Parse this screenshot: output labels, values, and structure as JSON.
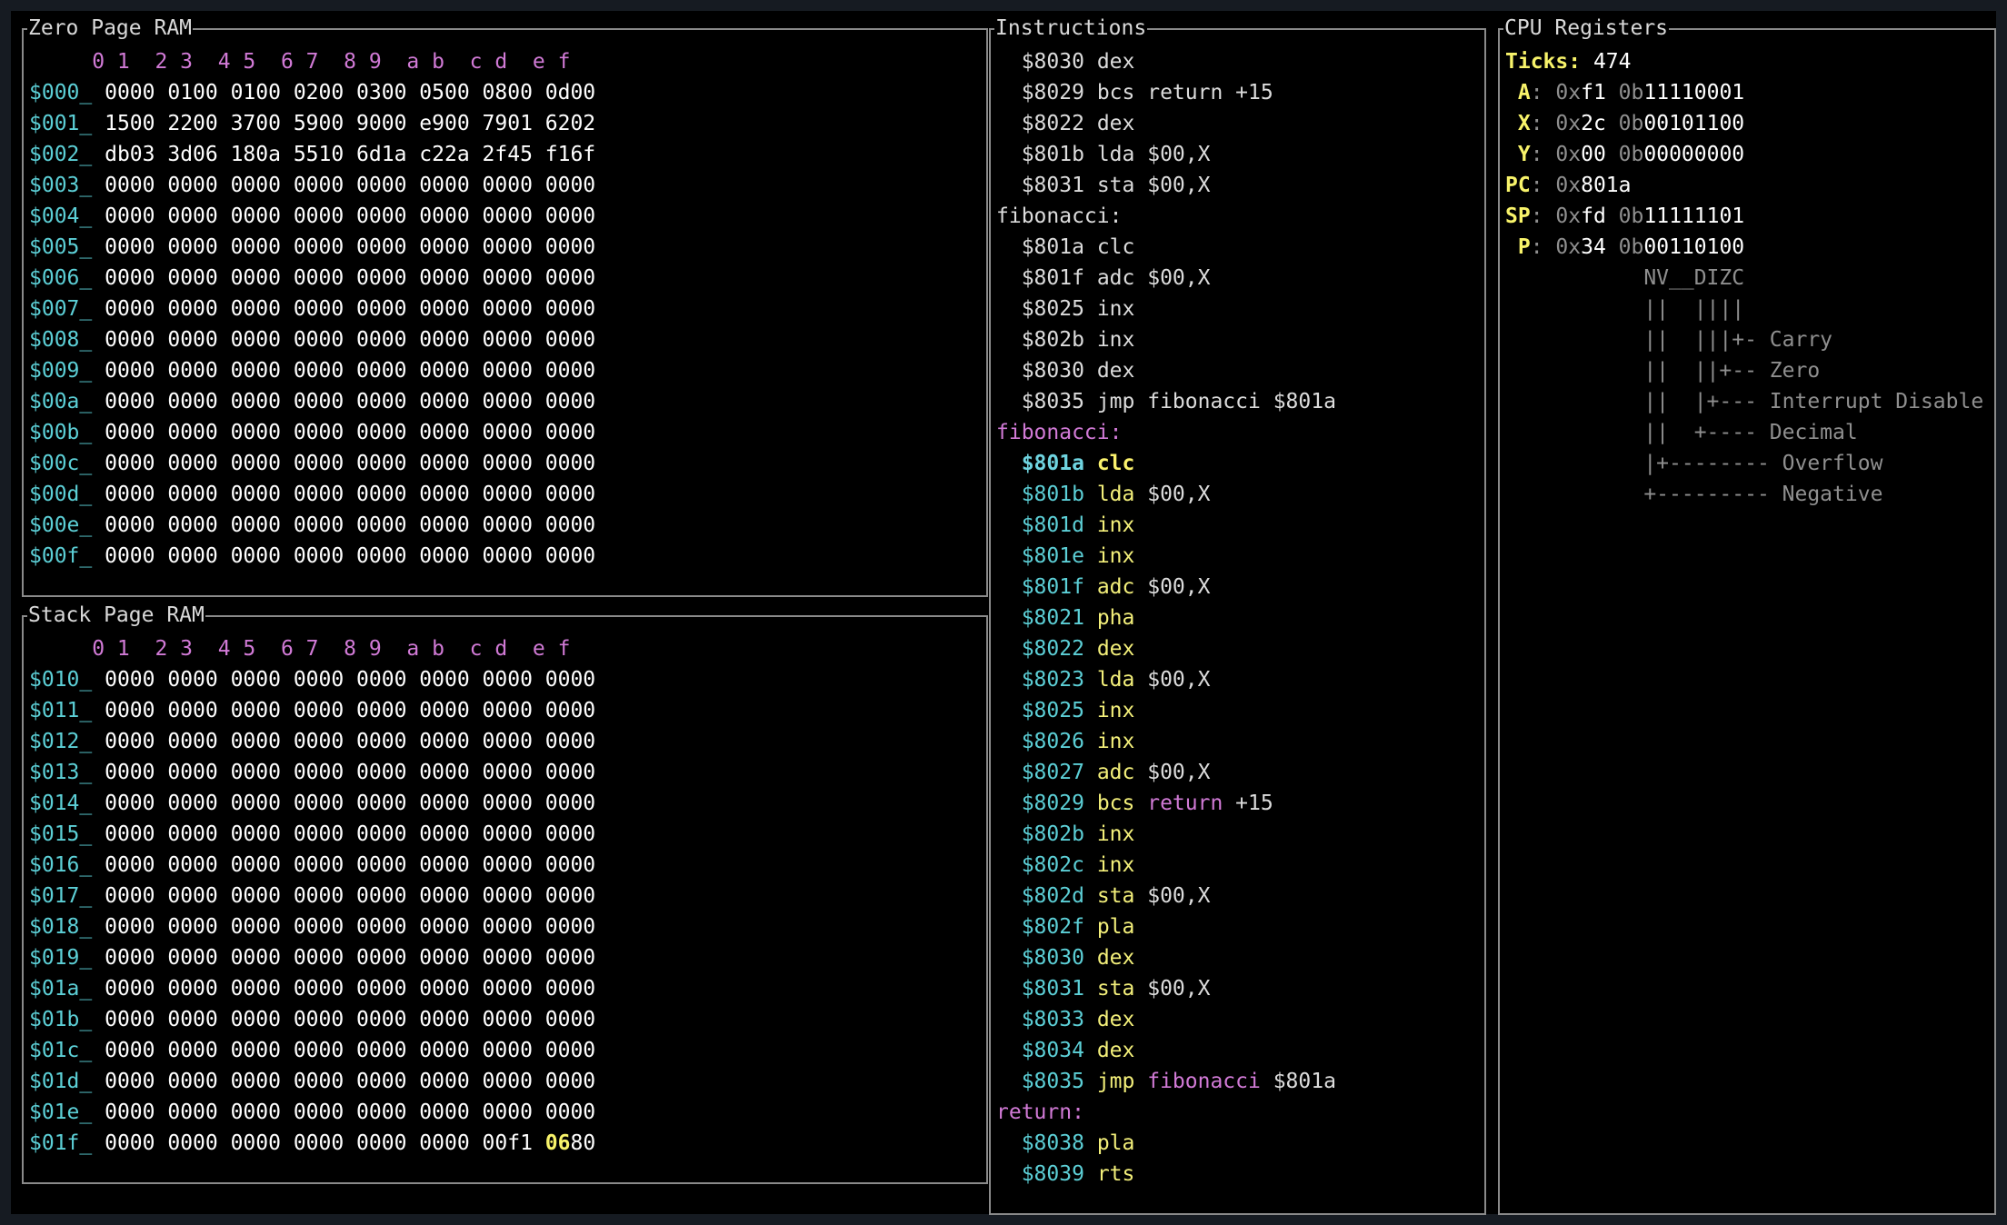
{
  "zero_page": {
    "title": "Zero Page RAM",
    "header": "     0 1  2 3  4 5  6 7  8 9  a b  c d  e f",
    "rows": [
      {
        "addr": "$000_",
        "data": "0000 0100 0100 0200 0300 0500 0800 0d00"
      },
      {
        "addr": "$001_",
        "data": "1500 2200 3700 5900 9000 e900 7901 6202"
      },
      {
        "addr": "$002_",
        "data": "db03 3d06 180a 5510 6d1a c22a 2f45 f16f"
      },
      {
        "addr": "$003_",
        "data": "0000 0000 0000 0000 0000 0000 0000 0000"
      },
      {
        "addr": "$004_",
        "data": "0000 0000 0000 0000 0000 0000 0000 0000"
      },
      {
        "addr": "$005_",
        "data": "0000 0000 0000 0000 0000 0000 0000 0000"
      },
      {
        "addr": "$006_",
        "data": "0000 0000 0000 0000 0000 0000 0000 0000"
      },
      {
        "addr": "$007_",
        "data": "0000 0000 0000 0000 0000 0000 0000 0000"
      },
      {
        "addr": "$008_",
        "data": "0000 0000 0000 0000 0000 0000 0000 0000"
      },
      {
        "addr": "$009_",
        "data": "0000 0000 0000 0000 0000 0000 0000 0000"
      },
      {
        "addr": "$00a_",
        "data": "0000 0000 0000 0000 0000 0000 0000 0000"
      },
      {
        "addr": "$00b_",
        "data": "0000 0000 0000 0000 0000 0000 0000 0000"
      },
      {
        "addr": "$00c_",
        "data": "0000 0000 0000 0000 0000 0000 0000 0000"
      },
      {
        "addr": "$00d_",
        "data": "0000 0000 0000 0000 0000 0000 0000 0000"
      },
      {
        "addr": "$00e_",
        "data": "0000 0000 0000 0000 0000 0000 0000 0000"
      },
      {
        "addr": "$00f_",
        "data": "0000 0000 0000 0000 0000 0000 0000 0000"
      }
    ]
  },
  "stack_page": {
    "title": "Stack Page RAM",
    "header": "     0 1  2 3  4 5  6 7  8 9  a b  c d  e f",
    "rows": [
      {
        "addr": "$010_",
        "data": "0000 0000 0000 0000 0000 0000 0000 0000"
      },
      {
        "addr": "$011_",
        "data": "0000 0000 0000 0000 0000 0000 0000 0000"
      },
      {
        "addr": "$012_",
        "data": "0000 0000 0000 0000 0000 0000 0000 0000"
      },
      {
        "addr": "$013_",
        "data": "0000 0000 0000 0000 0000 0000 0000 0000"
      },
      {
        "addr": "$014_",
        "data": "0000 0000 0000 0000 0000 0000 0000 0000"
      },
      {
        "addr": "$015_",
        "data": "0000 0000 0000 0000 0000 0000 0000 0000"
      },
      {
        "addr": "$016_",
        "data": "0000 0000 0000 0000 0000 0000 0000 0000"
      },
      {
        "addr": "$017_",
        "data": "0000 0000 0000 0000 0000 0000 0000 0000"
      },
      {
        "addr": "$018_",
        "data": "0000 0000 0000 0000 0000 0000 0000 0000"
      },
      {
        "addr": "$019_",
        "data": "0000 0000 0000 0000 0000 0000 0000 0000"
      },
      {
        "addr": "$01a_",
        "data": "0000 0000 0000 0000 0000 0000 0000 0000"
      },
      {
        "addr": "$01b_",
        "data": "0000 0000 0000 0000 0000 0000 0000 0000"
      },
      {
        "addr": "$01c_",
        "data": "0000 0000 0000 0000 0000 0000 0000 0000"
      },
      {
        "addr": "$01d_",
        "data": "0000 0000 0000 0000 0000 0000 0000 0000"
      },
      {
        "addr": "$01e_",
        "data": "0000 0000 0000 0000 0000 0000 0000 0000"
      },
      {
        "addr": "$01f_",
        "data": "0000 0000 0000 0000 0000 0000 00f1 ",
        "sp_byte": "06",
        "rest": "80"
      }
    ]
  },
  "instructions": {
    "title": "Instructions",
    "history": [
      {
        "addr": "$8030",
        "op": "dex",
        "arg": ""
      },
      {
        "addr": "$8029",
        "op": "bcs",
        "arg": "return +15"
      },
      {
        "addr": "$8022",
        "op": "dex",
        "arg": ""
      },
      {
        "addr": "$801b",
        "op": "lda",
        "arg": "$00,X"
      },
      {
        "addr": "$8031",
        "op": "sta",
        "arg": "$00,X"
      }
    ],
    "history_label": "fibonacci:",
    "history2": [
      {
        "addr": "$801a",
        "op": "clc",
        "arg": ""
      },
      {
        "addr": "$801f",
        "op": "adc",
        "arg": "$00,X"
      },
      {
        "addr": "$8025",
        "op": "inx",
        "arg": ""
      },
      {
        "addr": "$802b",
        "op": "inx",
        "arg": ""
      },
      {
        "addr": "$8030",
        "op": "dex",
        "arg": ""
      },
      {
        "addr": "$8035",
        "op": "jmp",
        "arg": "fibonacci $801a"
      }
    ],
    "program_label": "fibonacci:",
    "current": {
      "addr": "$801a",
      "op": "clc"
    },
    "program": [
      {
        "addr": "$801b",
        "op": "lda",
        "arg": "$00,X"
      },
      {
        "addr": "$801d",
        "op": "inx",
        "arg": ""
      },
      {
        "addr": "$801e",
        "op": "inx",
        "arg": ""
      },
      {
        "addr": "$801f",
        "op": "adc",
        "arg": "$00,X"
      },
      {
        "addr": "$8021",
        "op": "pha",
        "arg": ""
      },
      {
        "addr": "$8022",
        "op": "dex",
        "arg": ""
      },
      {
        "addr": "$8023",
        "op": "lda",
        "arg": "$00,X"
      },
      {
        "addr": "$8025",
        "op": "inx",
        "arg": ""
      },
      {
        "addr": "$8026",
        "op": "inx",
        "arg": ""
      },
      {
        "addr": "$8027",
        "op": "adc",
        "arg": "$00,X"
      },
      {
        "addr": "$8029",
        "op": "bcs",
        "label": "return",
        "arg": "+15"
      },
      {
        "addr": "$802b",
        "op": "inx",
        "arg": ""
      },
      {
        "addr": "$802c",
        "op": "inx",
        "arg": ""
      },
      {
        "addr": "$802d",
        "op": "sta",
        "arg": "$00,X"
      },
      {
        "addr": "$802f",
        "op": "pla",
        "arg": ""
      },
      {
        "addr": "$8030",
        "op": "dex",
        "arg": ""
      },
      {
        "addr": "$8031",
        "op": "sta",
        "arg": "$00,X"
      },
      {
        "addr": "$8033",
        "op": "dex",
        "arg": ""
      },
      {
        "addr": "$8034",
        "op": "dex",
        "arg": ""
      },
      {
        "addr": "$8035",
        "op": "jmp",
        "label": "fibonacci",
        "arg": "$801a"
      }
    ],
    "return_label": "return:",
    "return_program": [
      {
        "addr": "$8038",
        "op": "pla",
        "arg": ""
      },
      {
        "addr": "$8039",
        "op": "rts",
        "arg": ""
      }
    ]
  },
  "registers": {
    "title": "CPU Registers",
    "ticks_label": "Ticks:",
    "ticks": "474",
    "regs": [
      {
        "name": " A",
        "hex": "f1",
        "bin": "11110001"
      },
      {
        "name": " X",
        "hex": "2c",
        "bin": "00101100"
      },
      {
        "name": " Y",
        "hex": "00",
        "bin": "00000000"
      },
      {
        "name": "PC",
        "hex": "801a",
        "bin": ""
      },
      {
        "name": "SP",
        "hex": "fd",
        "bin": "11111101"
      },
      {
        "name": " P",
        "hex": "34",
        "bin": "00110100"
      }
    ],
    "hex_prefix": "0x",
    "bin_prefix": "0b",
    "flag_diagram": [
      "           NV__DIZC",
      "           ||  ||||",
      "           ||  |||+- Carry",
      "           ||  ||+-- Zero",
      "           ||  |+--- Interrupt Disable",
      "           ||  +---- Decimal",
      "           |+-------- Overflow",
      "           +--------- Negative"
    ]
  }
}
